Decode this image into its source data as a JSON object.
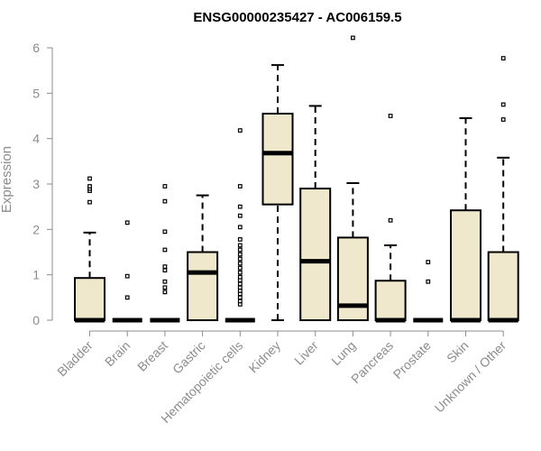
{
  "chart_data": {
    "type": "boxplot",
    "title": "ENSG00000235427 - AC006159.5",
    "ylabel": "Expression",
    "xlabel": "",
    "ylim": [
      0,
      6
    ],
    "yticks": [
      "0",
      "1",
      "2",
      "3",
      "4",
      "5",
      "6"
    ],
    "box_fill": "#efe8cd",
    "categories": [
      "Bladder",
      "Brain",
      "Breast",
      "Gastric",
      "Hematopoietic cells",
      "Kidney",
      "Liver",
      "Lung",
      "Pancreas",
      "Prostate",
      "Skin",
      "Unknown / Other"
    ],
    "boxes": [
      {
        "min": 0,
        "q1": 0,
        "median": 0,
        "q3": 0.93,
        "max": 1.93,
        "outliers": [
          2.6,
          2.85,
          2.9,
          2.95,
          3.12
        ]
      },
      {
        "min": 0,
        "q1": 0,
        "median": 0,
        "q3": 0,
        "max": 0,
        "outliers": [
          0.5,
          0.97,
          2.15
        ]
      },
      {
        "min": 0,
        "q1": 0,
        "median": 0,
        "q3": 0,
        "max": 0,
        "outliers": [
          0.62,
          0.72,
          0.85,
          1.1,
          1.18,
          1.55,
          1.95,
          2.62,
          2.95
        ]
      },
      {
        "min": 0,
        "q1": 0,
        "median": 1.05,
        "q3": 1.5,
        "max": 2.75,
        "outliers": []
      },
      {
        "min": 0,
        "q1": 0,
        "median": 0,
        "q3": 0,
        "max": 0,
        "outliers": [
          0.35,
          0.42,
          0.5,
          0.58,
          0.65,
          0.72,
          0.8,
          0.88,
          0.95,
          1.05,
          1.15,
          1.25,
          1.35,
          1.45,
          1.55,
          1.65,
          1.78,
          2.05,
          2.3,
          2.5,
          2.95,
          4.18
        ]
      },
      {
        "min": 0,
        "q1": 2.55,
        "median": 3.68,
        "q3": 4.55,
        "max": 5.62,
        "outliers": []
      },
      {
        "min": 0,
        "q1": 0,
        "median": 1.3,
        "q3": 2.9,
        "max": 4.72,
        "outliers": []
      },
      {
        "min": 0,
        "q1": 0,
        "median": 0.32,
        "q3": 1.82,
        "max": 3.02,
        "outliers": [
          6.22
        ]
      },
      {
        "min": 0,
        "q1": 0,
        "median": 0,
        "q3": 0.87,
        "max": 1.65,
        "outliers": [
          2.2,
          4.5
        ]
      },
      {
        "min": 0,
        "q1": 0,
        "median": 0,
        "q3": 0,
        "max": 0,
        "outliers": [
          0.85,
          1.28
        ]
      },
      {
        "min": 0,
        "q1": 0,
        "median": 0,
        "q3": 2.42,
        "max": 4.45,
        "outliers": []
      },
      {
        "min": 0,
        "q1": 0,
        "median": 0,
        "q3": 1.5,
        "max": 3.58,
        "outliers": [
          4.42,
          4.75,
          5.77
        ]
      }
    ]
  }
}
